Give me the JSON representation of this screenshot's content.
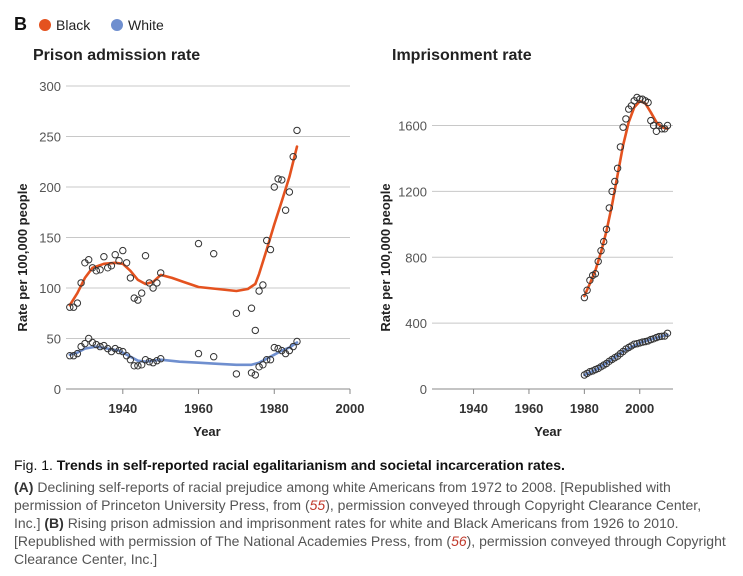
{
  "panel_label": "B",
  "legend": [
    {
      "label": "Black",
      "color": "#e4521f"
    },
    {
      "label": "White",
      "color": "#6f8fcf"
    }
  ],
  "chart_data": [
    {
      "type": "scatter",
      "title": "Prison admission rate",
      "xlabel": "Year",
      "ylabel": "Rate per 100,000 people",
      "xlim": [
        1925,
        2000
      ],
      "ylim": [
        0,
        300
      ],
      "xticks": [
        1940,
        1960,
        1980,
        2000
      ],
      "yticks": [
        0,
        50,
        100,
        150,
        200,
        250,
        300
      ],
      "grid": "horizontal",
      "series": [
        {
          "name": "Black",
          "color": "#e4521f",
          "points": [
            [
              1926,
              81
            ],
            [
              1927,
              81
            ],
            [
              1928,
              85
            ],
            [
              1929,
              105
            ],
            [
              1930,
              125
            ],
            [
              1931,
              128
            ],
            [
              1932,
              120
            ],
            [
              1933,
              117
            ],
            [
              1934,
              118
            ],
            [
              1935,
              131
            ],
            [
              1936,
              120
            ],
            [
              1937,
              122
            ],
            [
              1938,
              133
            ],
            [
              1939,
              127
            ],
            [
              1940,
              137
            ],
            [
              1941,
              125
            ],
            [
              1942,
              110
            ],
            [
              1943,
              90
            ],
            [
              1944,
              88
            ],
            [
              1945,
              95
            ],
            [
              1946,
              132
            ],
            [
              1947,
              105
            ],
            [
              1948,
              100
            ],
            [
              1949,
              105
            ],
            [
              1950,
              115
            ],
            [
              1960,
              144
            ],
            [
              1964,
              134
            ],
            [
              1970,
              75
            ],
            [
              1974,
              80
            ],
            [
              1975,
              58
            ],
            [
              1976,
              97
            ],
            [
              1977,
              103
            ],
            [
              1978,
              147
            ],
            [
              1979,
              138
            ],
            [
              1980,
              200
            ],
            [
              1981,
              208
            ],
            [
              1982,
              207
            ],
            [
              1983,
              177
            ],
            [
              1984,
              195
            ],
            [
              1985,
              230
            ],
            [
              1986,
              256
            ]
          ],
          "trend": [
            [
              1926,
              83
            ],
            [
              1928,
              95
            ],
            [
              1930,
              110
            ],
            [
              1932,
              120
            ],
            [
              1935,
              124
            ],
            [
              1938,
              125
            ],
            [
              1940,
              124
            ],
            [
              1942,
              117
            ],
            [
              1944,
              108
            ],
            [
              1946,
              104
            ],
            [
              1948,
              106
            ],
            [
              1950,
              113
            ],
            [
              1953,
              110
            ],
            [
              1956,
              106
            ],
            [
              1960,
              101
            ],
            [
              1965,
              99
            ],
            [
              1970,
              97
            ],
            [
              1973,
              99
            ],
            [
              1975,
              104
            ],
            [
              1976,
              114
            ],
            [
              1977,
              126
            ],
            [
              1978,
              138
            ],
            [
              1980,
              163
            ],
            [
              1982,
              186
            ],
            [
              1984,
              210
            ],
            [
              1986,
              240
            ]
          ]
        },
        {
          "name": "White",
          "color": "#6f8fcf",
          "points": [
            [
              1926,
              33
            ],
            [
              1927,
              33
            ],
            [
              1928,
              35
            ],
            [
              1929,
              42
            ],
            [
              1930,
              45
            ],
            [
              1931,
              50
            ],
            [
              1932,
              46
            ],
            [
              1933,
              44
            ],
            [
              1934,
              42
            ],
            [
              1935,
              43
            ],
            [
              1936,
              40
            ],
            [
              1937,
              37
            ],
            [
              1938,
              40
            ],
            [
              1939,
              38
            ],
            [
              1940,
              37
            ],
            [
              1941,
              33
            ],
            [
              1942,
              29
            ],
            [
              1943,
              23
            ],
            [
              1944,
              23
            ],
            [
              1945,
              24
            ],
            [
              1946,
              29
            ],
            [
              1947,
              27
            ],
            [
              1948,
              26
            ],
            [
              1949,
              28
            ],
            [
              1950,
              30
            ],
            [
              1960,
              35
            ],
            [
              1964,
              32
            ],
            [
              1970,
              15
            ],
            [
              1974,
              16
            ],
            [
              1975,
              14
            ],
            [
              1976,
              22
            ],
            [
              1977,
              24
            ],
            [
              1978,
              29
            ],
            [
              1979,
              29
            ],
            [
              1980,
              41
            ],
            [
              1981,
              40
            ],
            [
              1982,
              38
            ],
            [
              1983,
              35
            ],
            [
              1984,
              38
            ],
            [
              1985,
              42
            ],
            [
              1986,
              47
            ]
          ],
          "trend": [
            [
              1926,
              34
            ],
            [
              1928,
              36
            ],
            [
              1930,
              40
            ],
            [
              1933,
              42
            ],
            [
              1936,
              40
            ],
            [
              1939,
              38
            ],
            [
              1942,
              32
            ],
            [
              1944,
              28
            ],
            [
              1946,
              27
            ],
            [
              1950,
              29
            ],
            [
              1955,
              27
            ],
            [
              1960,
              26
            ],
            [
              1965,
              25
            ],
            [
              1970,
              24
            ],
            [
              1974,
              24
            ],
            [
              1976,
              26
            ],
            [
              1978,
              30
            ],
            [
              1980,
              34
            ],
            [
              1982,
              38
            ],
            [
              1984,
              41
            ],
            [
              1986,
              46
            ]
          ]
        }
      ]
    },
    {
      "type": "scatter",
      "title": "Imprisonment rate",
      "xlabel": "Year",
      "ylabel": "Rate per 100,000 people",
      "xlim": [
        1925,
        2012
      ],
      "ylim": [
        0,
        1840
      ],
      "xticks": [
        1940,
        1960,
        1980,
        2000
      ],
      "yticks": [
        0,
        400,
        800,
        1200,
        1600
      ],
      "grid": "horizontal",
      "series": [
        {
          "name": "Black",
          "color": "#e4521f",
          "points": [
            [
              1980,
              555
            ],
            [
              1981,
              600
            ],
            [
              1982,
              660
            ],
            [
              1983,
              690
            ],
            [
              1984,
              700
            ],
            [
              1985,
              775
            ],
            [
              1986,
              840
            ],
            [
              1987,
              895
            ],
            [
              1988,
              970
            ],
            [
              1989,
              1100
            ],
            [
              1990,
              1200
            ],
            [
              1991,
              1260
            ],
            [
              1992,
              1340
            ],
            [
              1993,
              1470
            ],
            [
              1994,
              1590
            ],
            [
              1995,
              1640
            ],
            [
              1996,
              1700
            ],
            [
              1997,
              1720
            ],
            [
              1998,
              1750
            ],
            [
              1999,
              1770
            ],
            [
              2000,
              1760
            ],
            [
              2001,
              1760
            ],
            [
              2002,
              1750
            ],
            [
              2003,
              1740
            ],
            [
              2004,
              1630
            ],
            [
              2005,
              1600
            ],
            [
              2006,
              1565
            ],
            [
              2007,
              1600
            ],
            [
              2008,
              1580
            ],
            [
              2009,
              1580
            ],
            [
              2010,
              1600
            ]
          ],
          "trend": [
            [
              1980,
              565
            ],
            [
              1982,
              640
            ],
            [
              1984,
              720
            ],
            [
              1986,
              830
            ],
            [
              1988,
              960
            ],
            [
              1990,
              1120
            ],
            [
              1992,
              1300
            ],
            [
              1994,
              1480
            ],
            [
              1996,
              1620
            ],
            [
              1998,
              1710
            ],
            [
              2000,
              1748
            ],
            [
              2002,
              1735
            ],
            [
              2004,
              1680
            ],
            [
              2006,
              1620
            ],
            [
              2008,
              1590
            ],
            [
              2010,
              1580
            ]
          ]
        },
        {
          "name": "White",
          "color": "#6f8fcf",
          "points": [
            [
              1980,
              85
            ],
            [
              1981,
              95
            ],
            [
              1982,
              105
            ],
            [
              1983,
              110
            ],
            [
              1984,
              118
            ],
            [
              1985,
              125
            ],
            [
              1986,
              135
            ],
            [
              1987,
              145
            ],
            [
              1988,
              155
            ],
            [
              1989,
              168
            ],
            [
              1990,
              180
            ],
            [
              1991,
              190
            ],
            [
              1992,
              200
            ],
            [
              1993,
              215
            ],
            [
              1994,
              228
            ],
            [
              1995,
              242
            ],
            [
              1996,
              252
            ],
            [
              1997,
              262
            ],
            [
              1998,
              272
            ],
            [
              1999,
              275
            ],
            [
              2000,
              280
            ],
            [
              2001,
              285
            ],
            [
              2002,
              288
            ],
            [
              2003,
              292
            ],
            [
              2004,
              300
            ],
            [
              2005,
              305
            ],
            [
              2006,
              312
            ],
            [
              2007,
              318
            ],
            [
              2008,
              320
            ],
            [
              2009,
              322
            ],
            [
              2010,
              338
            ]
          ],
          "trend": [
            [
              1980,
              85
            ],
            [
              1985,
              125
            ],
            [
              1990,
              180
            ],
            [
              1995,
              240
            ],
            [
              2000,
              280
            ],
            [
              2005,
              306
            ],
            [
              2010,
              330
            ]
          ]
        }
      ]
    }
  ],
  "caption": {
    "fig_label": "Fig. 1.",
    "title": "Trends in self-reported racial egalitarianism and societal incarceration rates.",
    "a_label": "(A)",
    "a_text": "Declining self-reports of racial prejudice among white Americans from 1972 to 2008. [Republished with permission of Princeton University Press, from (",
    "a_ref": "55",
    "a_tail": "), permission conveyed through Copyright Clearance Center, Inc.]",
    "b_label": "(B)",
    "b_text": "Rising prison admission and imprisonment rates for white and Black Americans from 1926 to 2010. [Republished with permission of The National Academies Press, from (",
    "b_ref": "56",
    "b_tail": "), permission conveyed through Copyright Clearance Center, Inc.]"
  }
}
